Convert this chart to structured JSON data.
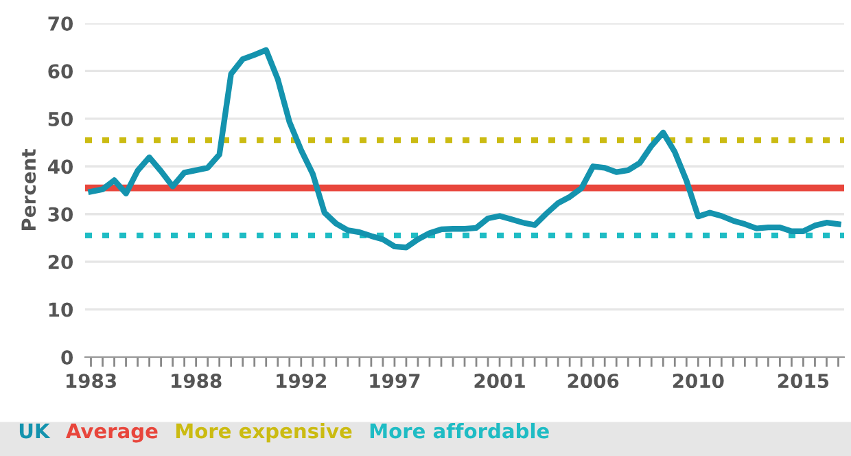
{
  "chart_data": {
    "type": "line",
    "ylabel": "Percent",
    "categories": [
      "1983",
      null,
      null,
      null,
      null,
      null,
      null,
      null,
      null,
      "1988",
      null,
      null,
      null,
      null,
      null,
      null,
      null,
      null,
      "1992",
      null,
      null,
      null,
      null,
      null,
      null,
      null,
      "1997",
      null,
      null,
      null,
      null,
      null,
      null,
      null,
      null,
      "2001",
      null,
      null,
      null,
      null,
      null,
      null,
      null,
      "2006",
      null,
      null,
      null,
      null,
      null,
      null,
      null,
      null,
      "2010",
      null,
      null,
      null,
      null,
      null,
      null,
      null,
      null,
      "2015",
      null,
      null,
      null
    ],
    "series": [
      {
        "name": "UK",
        "color": "#1493ae",
        "values": [
          34.7,
          35.2,
          37.1,
          34.3,
          39.1,
          41.9,
          39.0,
          35.8,
          38.7,
          39.2,
          39.7,
          42.5,
          59.4,
          62.5,
          63.4,
          64.4,
          58.3,
          49.3,
          43.4,
          38.4,
          30.3,
          28.0,
          26.6,
          26.2,
          25.4,
          24.7,
          23.2,
          23.0,
          24.7,
          26.0,
          26.8,
          26.9,
          26.9,
          27.1,
          29.1,
          29.6,
          28.9,
          28.2,
          27.7,
          30.1,
          32.3,
          33.6,
          35.4,
          40.0,
          39.7,
          38.8,
          39.2,
          40.7,
          44.3,
          47.1,
          43.0,
          37.0,
          29.5,
          30.3,
          29.6,
          28.6,
          27.9,
          27.0,
          27.2,
          27.2,
          26.4,
          26.4,
          27.6,
          28.2,
          27.9
        ]
      }
    ],
    "ref_lines": [
      {
        "axis": "y",
        "value": 35.5,
        "label": "Average",
        "color": "#e8463c",
        "line_style": "solid"
      },
      {
        "axis": "y",
        "value": 45.5,
        "label": "More expensive",
        "color": "#cbbb12",
        "line_style": "dotted"
      },
      {
        "axis": "y",
        "value": 25.5,
        "label": "More affordable",
        "color": "#1fbcc4",
        "line_style": "dotted"
      }
    ],
    "ylim": [
      0,
      70
    ],
    "yticks": [
      0,
      10,
      20,
      30,
      40,
      50,
      60,
      70
    ],
    "grid": "y",
    "legend": "bottom",
    "marker": "none",
    "line_style": "solid"
  }
}
